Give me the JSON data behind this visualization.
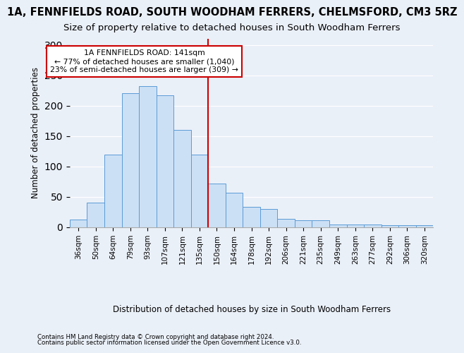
{
  "title": "1A, FENNFIELDS ROAD, SOUTH WOODHAM FERRERS, CHELMSFORD, CM3 5RZ",
  "subtitle": "Size of property relative to detached houses in South Woodham Ferrers",
  "xlabel": "Distribution of detached houses by size in South Woodham Ferrers",
  "ylabel": "Number of detached properties",
  "footnote1": "Contains HM Land Registry data © Crown copyright and database right 2024.",
  "footnote2": "Contains public sector information licensed under the Open Government Licence v3.0.",
  "bar_labels": [
    "36sqm",
    "50sqm",
    "64sqm",
    "79sqm",
    "93sqm",
    "107sqm",
    "121sqm",
    "135sqm",
    "150sqm",
    "164sqm",
    "178sqm",
    "192sqm",
    "206sqm",
    "221sqm",
    "235sqm",
    "249sqm",
    "263sqm",
    "277sqm",
    "292sqm",
    "306sqm",
    "320sqm"
  ],
  "bar_values": [
    12,
    40,
    120,
    220,
    232,
    217,
    160,
    120,
    72,
    57,
    33,
    30,
    14,
    11,
    11,
    5,
    4,
    4,
    3,
    3,
    3
  ],
  "bar_color": "#cce0f5",
  "bar_edge_color": "#5b9bd5",
  "vline_x": 7.5,
  "vline_color": "#cc0000",
  "annotation_text": "1A FENNFIELDS ROAD: 141sqm\n← 77% of detached houses are smaller (1,040)\n23% of semi-detached houses are larger (309) →",
  "annotation_box_color": "#cc0000",
  "ylim": [
    0,
    310
  ],
  "yticks": [
    0,
    50,
    100,
    150,
    200,
    250,
    300
  ],
  "bg_color": "#eaf0f8",
  "grid_color": "#ffffff",
  "title_fontsize": 10.5,
  "subtitle_fontsize": 9.5
}
